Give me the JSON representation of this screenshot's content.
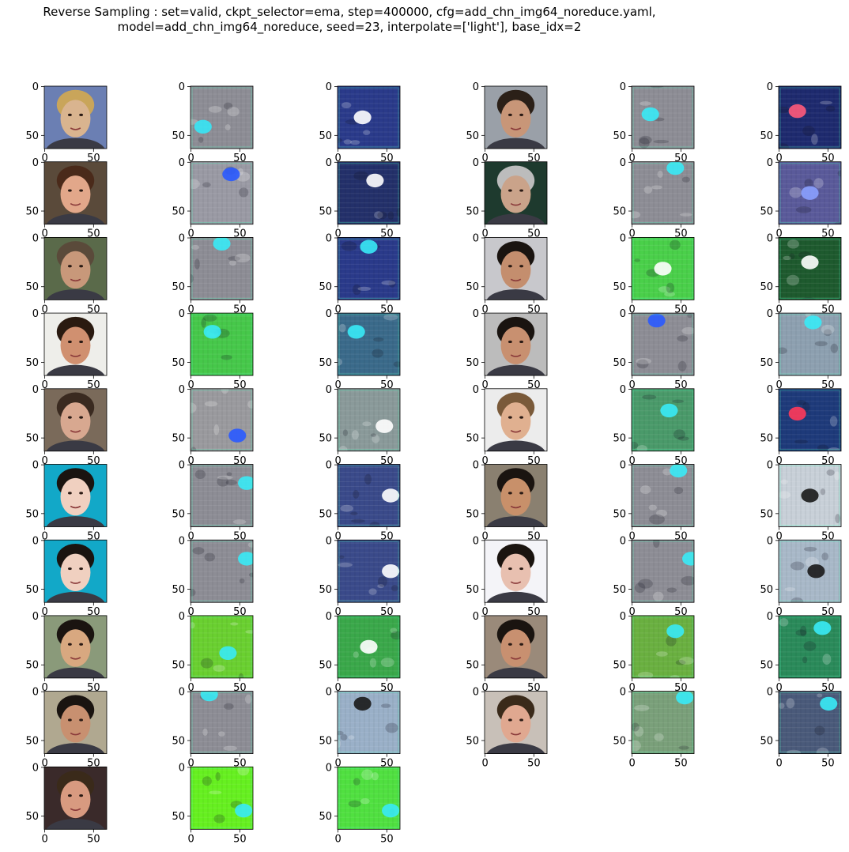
{
  "figure": {
    "title": "Reverse Sampling : set=valid, ckpt_selector=ema, step=400000, cfg=add_chn_img64_noreduce.yaml,\nmodel=add_chn_img64_noreduce, seed=23, interpolate=['light'], base_idx=2"
  },
  "chart_data": {
    "type": "image_grid",
    "title": "Reverse Sampling : set=valid, ckpt_selector=ema, step=400000, cfg=add_chn_img64_noreduce.yaml,\nmodel=add_chn_img64_noreduce, seed=23, interpolate=['light'], base_idx=2",
    "rows": 10,
    "cols": 6,
    "image_size": [
      64,
      64
    ],
    "x_ticks": [
      0,
      50
    ],
    "y_ticks": [
      0,
      50
    ],
    "x_tick_labels_shown_on_row": 9,
    "panels": [
      {
        "row": 0,
        "col": 0,
        "kind": "face",
        "bg": "#6b7fb3",
        "skin": "#d9b48f",
        "hair": "#c9a55a"
      },
      {
        "row": 0,
        "col": 1,
        "kind": "noise",
        "bg": "#8d8d95",
        "blob": "#36e6f5",
        "bx": 0.2,
        "by": 0.65
      },
      {
        "row": 0,
        "col": 2,
        "kind": "noise",
        "bg": "#2a3a8a",
        "blob": "#ffffff",
        "bx": 0.4,
        "by": 0.5
      },
      {
        "row": 0,
        "col": 3,
        "kind": "face",
        "bg": "#9aa0a8",
        "skin": "#c89678",
        "hair": "#2b2018"
      },
      {
        "row": 0,
        "col": 4,
        "kind": "noise",
        "bg": "#8d8d95",
        "blob": "#39eaf6",
        "bx": 0.3,
        "by": 0.45
      },
      {
        "row": 0,
        "col": 5,
        "kind": "noise",
        "bg": "#1e2a6e",
        "blob": "#ff5a7a",
        "bx": 0.3,
        "by": 0.4
      },
      {
        "row": 1,
        "col": 0,
        "kind": "face",
        "bg": "#5a4a3a",
        "skin": "#e2a78a",
        "hair": "#4a2a1a"
      },
      {
        "row": 1,
        "col": 1,
        "kind": "noise",
        "bg": "#9a9aa4",
        "blob": "#2a5aff",
        "bx": 0.65,
        "by": 0.2
      },
      {
        "row": 1,
        "col": 2,
        "kind": "noise",
        "bg": "#23306a",
        "blob": "#ffffff",
        "bx": 0.6,
        "by": 0.3
      },
      {
        "row": 1,
        "col": 3,
        "kind": "face",
        "bg": "#1e3a2e",
        "skin": "#caa38a",
        "hair": "#bcbcbc"
      },
      {
        "row": 1,
        "col": 4,
        "kind": "noise",
        "bg": "#8d8d95",
        "blob": "#39eaf6",
        "bx": 0.7,
        "by": 0.1
      },
      {
        "row": 1,
        "col": 5,
        "kind": "noise",
        "bg": "#5a5a9a",
        "blob": "#8aa0ff",
        "bx": 0.5,
        "by": 0.5
      },
      {
        "row": 2,
        "col": 0,
        "kind": "face",
        "bg": "#5a6a4a",
        "skin": "#c8987a",
        "hair": "#5a4a3a"
      },
      {
        "row": 2,
        "col": 1,
        "kind": "noise",
        "bg": "#8d8d95",
        "blob": "#39eaf6",
        "bx": 0.5,
        "by": 0.1
      },
      {
        "row": 2,
        "col": 2,
        "kind": "noise",
        "bg": "#2a3a8a",
        "blob": "#39eaf6",
        "bx": 0.5,
        "by": 0.15
      },
      {
        "row": 2,
        "col": 3,
        "kind": "face",
        "bg": "#c8c8cc",
        "skin": "#c48e6e",
        "hair": "#1a1410"
      },
      {
        "row": 2,
        "col": 4,
        "kind": "noise",
        "bg": "#4ad04a",
        "blob": "#ffffff",
        "bx": 0.5,
        "by": 0.5
      },
      {
        "row": 2,
        "col": 5,
        "kind": "noise",
        "bg": "#1e5a2e",
        "blob": "#ffffff",
        "bx": 0.5,
        "by": 0.4
      },
      {
        "row": 3,
        "col": 0,
        "kind": "face",
        "bg": "#eeeeea",
        "skin": "#d09070",
        "hair": "#2a1a10"
      },
      {
        "row": 3,
        "col": 1,
        "kind": "noise",
        "bg": "#46c84a",
        "blob": "#39eaf6",
        "bx": 0.35,
        "by": 0.3
      },
      {
        "row": 3,
        "col": 2,
        "kind": "noise",
        "bg": "#3a6a8a",
        "blob": "#39eaf6",
        "bx": 0.3,
        "by": 0.3
      },
      {
        "row": 3,
        "col": 3,
        "kind": "face",
        "bg": "#bcbcbc",
        "skin": "#c89070",
        "hair": "#1a1410"
      },
      {
        "row": 3,
        "col": 4,
        "kind": "noise",
        "bg": "#8d8d95",
        "blob": "#2a5aff",
        "bx": 0.4,
        "by": 0.12
      },
      {
        "row": 3,
        "col": 5,
        "kind": "noise",
        "bg": "#8da0b0",
        "blob": "#39eaf6",
        "bx": 0.55,
        "by": 0.15
      },
      {
        "row": 4,
        "col": 0,
        "kind": "face",
        "bg": "#7a6a5a",
        "skin": "#d8a890",
        "hair": "#3a2a20"
      },
      {
        "row": 4,
        "col": 1,
        "kind": "noise",
        "bg": "#9a9a9e",
        "blob": "#2a5aff",
        "bx": 0.75,
        "by": 0.75
      },
      {
        "row": 4,
        "col": 2,
        "kind": "noise",
        "bg": "#8a9a9a",
        "blob": "#ffffff",
        "bx": 0.75,
        "by": 0.6
      },
      {
        "row": 4,
        "col": 3,
        "kind": "face",
        "bg": "#ececec",
        "skin": "#e0b090",
        "hair": "#7a5a3a"
      },
      {
        "row": 4,
        "col": 4,
        "kind": "noise",
        "bg": "#4a9a6a",
        "blob": "#39eaf6",
        "bx": 0.6,
        "by": 0.35
      },
      {
        "row": 4,
        "col": 5,
        "kind": "noise",
        "bg": "#1e3a7a",
        "blob": "#ff3a5a",
        "bx": 0.3,
        "by": 0.4
      },
      {
        "row": 5,
        "col": 0,
        "kind": "face",
        "bg": "#12a8c8",
        "skin": "#f0d0c0",
        "hair": "#1a1410"
      },
      {
        "row": 5,
        "col": 1,
        "kind": "noise",
        "bg": "#8d8d95",
        "blob": "#39eaf6",
        "bx": 0.9,
        "by": 0.3
      },
      {
        "row": 5,
        "col": 2,
        "kind": "noise",
        "bg": "#3a4a8a",
        "blob": "#ffffff",
        "bx": 0.85,
        "by": 0.5
      },
      {
        "row": 5,
        "col": 3,
        "kind": "face",
        "bg": "#8a8070",
        "skin": "#c8906a",
        "hair": "#1a1410"
      },
      {
        "row": 5,
        "col": 4,
        "kind": "noise",
        "bg": "#8d8d95",
        "blob": "#39eaf6",
        "bx": 0.75,
        "by": 0.1
      },
      {
        "row": 5,
        "col": 5,
        "kind": "noise",
        "bg": "#c8d0d8",
        "blob": "#1a1a1a",
        "bx": 0.5,
        "by": 0.5
      },
      {
        "row": 6,
        "col": 0,
        "kind": "face",
        "bg": "#12a8c8",
        "skin": "#f0d0c0",
        "hair": "#1a1410"
      },
      {
        "row": 6,
        "col": 1,
        "kind": "noise",
        "bg": "#8d8d95",
        "blob": "#39eaf6",
        "bx": 0.9,
        "by": 0.3
      },
      {
        "row": 6,
        "col": 2,
        "kind": "noise",
        "bg": "#3a4a8a",
        "blob": "#ffffff",
        "bx": 0.85,
        "by": 0.5
      },
      {
        "row": 6,
        "col": 3,
        "kind": "face",
        "bg": "#f4f4f8",
        "skin": "#e8c0b0",
        "hair": "#1a1410"
      },
      {
        "row": 6,
        "col": 4,
        "kind": "noise",
        "bg": "#8d8d95",
        "blob": "#39eaf6",
        "bx": 0.95,
        "by": 0.3
      },
      {
        "row": 6,
        "col": 5,
        "kind": "noise",
        "bg": "#a8b8c8",
        "blob": "#1a1a1a",
        "bx": 0.6,
        "by": 0.5
      },
      {
        "row": 7,
        "col": 0,
        "kind": "face",
        "bg": "#8a9a7a",
        "skin": "#d8a880",
        "hair": "#1a1410"
      },
      {
        "row": 7,
        "col": 1,
        "kind": "noise",
        "bg": "#6ad030",
        "blob": "#39eaf6",
        "bx": 0.6,
        "by": 0.6
      },
      {
        "row": 7,
        "col": 2,
        "kind": "noise",
        "bg": "#3aa84a",
        "blob": "#ffffff",
        "bx": 0.5,
        "by": 0.5
      },
      {
        "row": 7,
        "col": 3,
        "kind": "face",
        "bg": "#9a8a7a",
        "skin": "#c89070",
        "hair": "#1a1410"
      },
      {
        "row": 7,
        "col": 4,
        "kind": "noise",
        "bg": "#6ab040",
        "blob": "#39eaf6",
        "bx": 0.7,
        "by": 0.25
      },
      {
        "row": 7,
        "col": 5,
        "kind": "noise",
        "bg": "#2a8a5a",
        "blob": "#39eaf6",
        "bx": 0.7,
        "by": 0.2
      },
      {
        "row": 8,
        "col": 0,
        "kind": "face",
        "bg": "#b0a890",
        "skin": "#c89070",
        "hair": "#1a1410"
      },
      {
        "row": 8,
        "col": 1,
        "kind": "noise",
        "bg": "#8d8d95",
        "blob": "#39eaf6",
        "bx": 0.3,
        "by": 0.05
      },
      {
        "row": 8,
        "col": 2,
        "kind": "noise",
        "bg": "#9ab0c8",
        "blob": "#1a1a1a",
        "bx": 0.4,
        "by": 0.2
      },
      {
        "row": 8,
        "col": 3,
        "kind": "face",
        "bg": "#c8c0b8",
        "skin": "#e0a890",
        "hair": "#3a2a1a"
      },
      {
        "row": 8,
        "col": 4,
        "kind": "noise",
        "bg": "#7aa07a",
        "blob": "#39eaf6",
        "bx": 0.85,
        "by": 0.1
      },
      {
        "row": 8,
        "col": 5,
        "kind": "noise",
        "bg": "#4a5a7a",
        "blob": "#39eaf6",
        "bx": 0.8,
        "by": 0.2
      },
      {
        "row": 9,
        "col": 0,
        "kind": "face",
        "bg": "#3a2a2a",
        "skin": "#d89a80",
        "hair": "#3a2a1a"
      },
      {
        "row": 9,
        "col": 1,
        "kind": "noise",
        "bg": "#66f020",
        "blob": "#39eaf6",
        "bx": 0.85,
        "by": 0.7
      },
      {
        "row": 9,
        "col": 2,
        "kind": "noise",
        "bg": "#50e040",
        "blob": "#39eaf6",
        "bx": 0.85,
        "by": 0.7
      }
    ]
  }
}
